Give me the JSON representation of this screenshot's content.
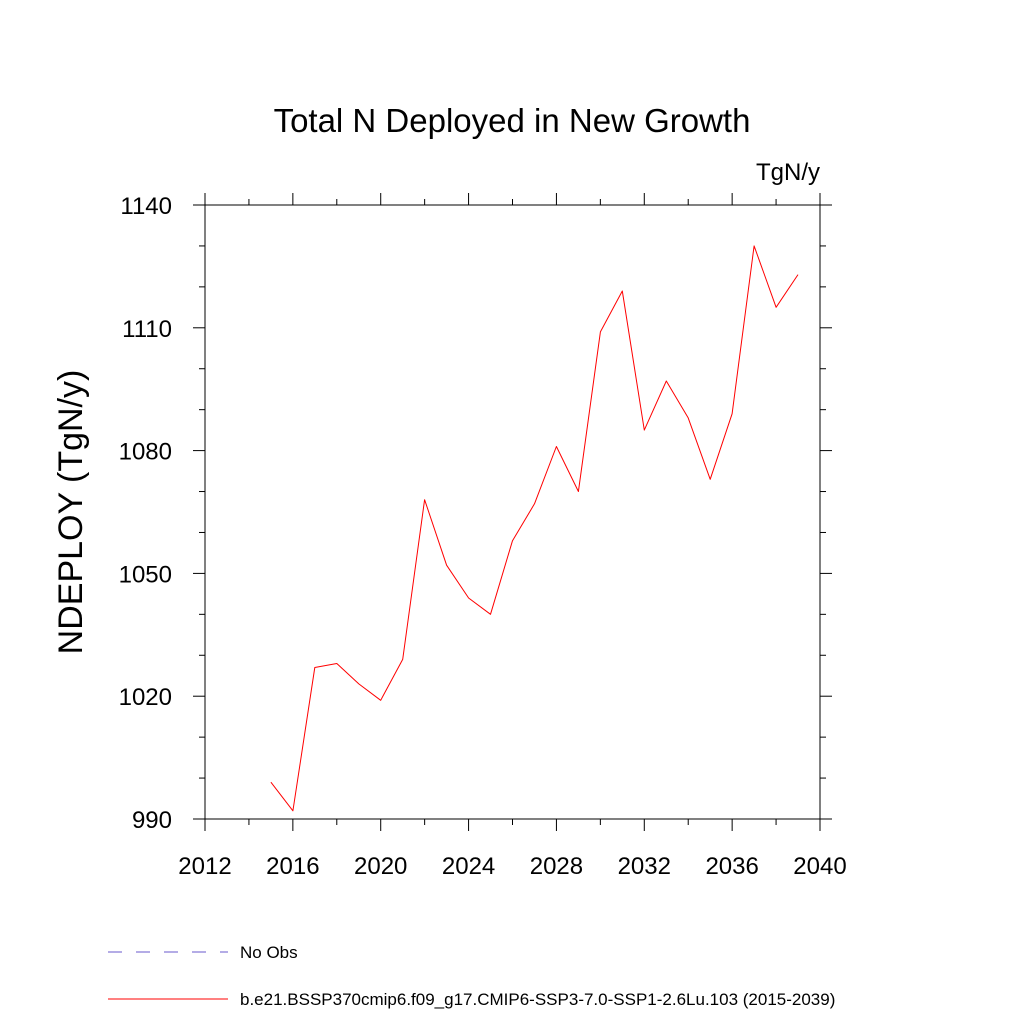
{
  "chart_data": {
    "type": "line",
    "title": "Total N Deployed in New Growth",
    "units": "TgN/y",
    "ylabel": "NDEPLOY  (TgN/y)",
    "xlabel": "",
    "xlim": [
      2012,
      2040
    ],
    "ylim": [
      990,
      1140
    ],
    "x_ticks": [
      2012,
      2016,
      2020,
      2024,
      2028,
      2032,
      2036,
      2040
    ],
    "y_ticks": [
      990,
      1020,
      1050,
      1080,
      1110,
      1140
    ],
    "grid": false,
    "series": [
      {
        "name": "b.e21.BSSP370cmip6.f09_g17.CMIP6-SSP3-7.0-SSP1-2.6Lu.103 (2015-2039)",
        "color": "#ff0000",
        "x": [
          2015,
          2016,
          2017,
          2018,
          2019,
          2020,
          2021,
          2022,
          2023,
          2024,
          2025,
          2026,
          2027,
          2028,
          2029,
          2030,
          2031,
          2032,
          2033,
          2034,
          2035,
          2036,
          2037,
          2038,
          2039
        ],
        "y": [
          999,
          992,
          1027,
          1028,
          1023,
          1019,
          1029,
          1068,
          1052,
          1044,
          1040,
          1058,
          1067,
          1081,
          1070,
          1109,
          1119,
          1085,
          1097,
          1088,
          1073,
          1089,
          1130,
          1115,
          1123
        ]
      }
    ],
    "legend": [
      {
        "label": "No Obs",
        "style": "dashed",
        "color": "#6a5acd"
      },
      {
        "label": "b.e21.BSSP370cmip6.f09_g17.CMIP6-SSP3-7.0-SSP1-2.6Lu.103 (2015-2039)",
        "style": "solid",
        "color": "#ff0000"
      }
    ],
    "legend_position": "bottom"
  }
}
